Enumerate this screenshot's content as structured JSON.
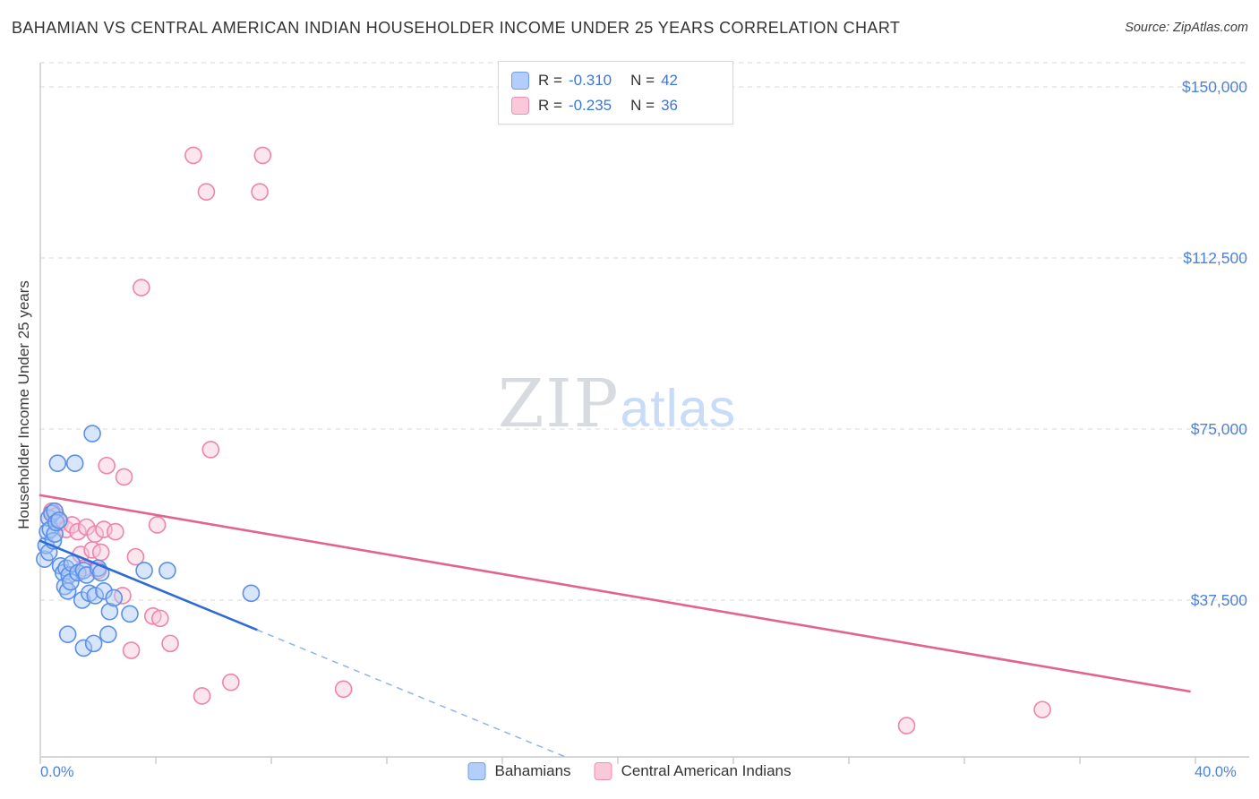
{
  "header": {
    "source": "Source: ZipAtlas.com"
  },
  "correlation_legend": {
    "r_label": "R =",
    "n_label": "N =",
    "rows": [
      {
        "series": "Bahamians",
        "r": "-0.310",
        "n": "42"
      },
      {
        "series": "Central American Indians",
        "r": "-0.235",
        "n": "36"
      }
    ]
  },
  "watermark": {
    "zip": "ZIP",
    "atlas": "atlas"
  },
  "chart_data": {
    "type": "scatter",
    "title": "BAHAMIAN VS CENTRAL AMERICAN INDIAN HOUSEHOLDER INCOME UNDER 25 YEARS CORRELATION CHART",
    "ylabel": "Householder Income Under 25 years",
    "x_axis": {
      "min": 0,
      "max": 40,
      "tick_count": 10,
      "left_label": "0.0%",
      "right_label": "40.0%"
    },
    "y_axis": {
      "min": 0,
      "max": 157000,
      "gridlines": [
        150000,
        112500,
        75000,
        37500
      ],
      "tick_labels": [
        "$150,000",
        "$112,500",
        "$75,000",
        "$37,500"
      ],
      "label_color": "#4d82d9"
    },
    "grid_color": "#d8d8d8",
    "axis_color": "#c9c9c9",
    "series": [
      {
        "name": "Central American Indians",
        "stroke": "#f083ab",
        "fill": "#f8c7d8",
        "trend_color": "#e2638f",
        "points": [
          [
            5.3,
            135000
          ],
          [
            7.7,
            135000
          ],
          [
            5.75,
            127000
          ],
          [
            7.6,
            127000
          ],
          [
            3.5,
            106000
          ],
          [
            2.3,
            67000
          ],
          [
            2.9,
            64500
          ],
          [
            5.9,
            70500
          ],
          [
            0.3,
            55500
          ],
          [
            0.4,
            57000
          ],
          [
            0.55,
            56000
          ],
          [
            0.7,
            54500
          ],
          [
            0.9,
            53000
          ],
          [
            1.1,
            54000
          ],
          [
            1.3,
            52500
          ],
          [
            1.6,
            53500
          ],
          [
            1.9,
            52000
          ],
          [
            2.2,
            53000
          ],
          [
            2.6,
            52500
          ],
          [
            1.4,
            47500
          ],
          [
            1.8,
            48500
          ],
          [
            2.1,
            48000
          ],
          [
            1.5,
            44500
          ],
          [
            2.0,
            44000
          ],
          [
            3.3,
            47000
          ],
          [
            4.05,
            54000
          ],
          [
            2.85,
            38500
          ],
          [
            3.9,
            34000
          ],
          [
            4.15,
            33500
          ],
          [
            3.15,
            26500
          ],
          [
            4.5,
            28000
          ],
          [
            5.6,
            16500
          ],
          [
            6.6,
            19500
          ],
          [
            10.5,
            18000
          ],
          [
            30.0,
            10000
          ],
          [
            34.7,
            13500
          ]
        ],
        "trend": {
          "solid": [
            [
              0,
              60500
            ],
            [
              39.8,
              17500
            ]
          ]
        }
      },
      {
        "name": "Bahamians",
        "stroke": "#5b8fe8",
        "fill": "#a9c8f7",
        "trend_color": "#2e6bd6",
        "trend_dash_color": "#8fb4ea",
        "points": [
          [
            0.15,
            46500
          ],
          [
            0.2,
            49500
          ],
          [
            0.25,
            52500
          ],
          [
            0.3,
            55500
          ],
          [
            0.3,
            48000
          ],
          [
            0.35,
            53000
          ],
          [
            0.4,
            56500
          ],
          [
            0.45,
            50500
          ],
          [
            0.5,
            57000
          ],
          [
            0.5,
            52000
          ],
          [
            0.55,
            54500
          ],
          [
            0.6,
            67500
          ],
          [
            0.65,
            55000
          ],
          [
            0.7,
            45000
          ],
          [
            0.8,
            43500
          ],
          [
            0.85,
            40500
          ],
          [
            0.9,
            44500
          ],
          [
            0.95,
            30000
          ],
          [
            0.95,
            39500
          ],
          [
            1.0,
            43000
          ],
          [
            1.05,
            41500
          ],
          [
            1.1,
            45500
          ],
          [
            1.2,
            67500
          ],
          [
            1.3,
            43500
          ],
          [
            1.45,
            37500
          ],
          [
            1.5,
            44000
          ],
          [
            1.5,
            27000
          ],
          [
            1.6,
            43000
          ],
          [
            1.7,
            39000
          ],
          [
            1.8,
            74000
          ],
          [
            1.85,
            28000
          ],
          [
            1.9,
            38500
          ],
          [
            2.0,
            44500
          ],
          [
            2.1,
            43500
          ],
          [
            2.2,
            39500
          ],
          [
            2.35,
            30000
          ],
          [
            2.4,
            35000
          ],
          [
            2.55,
            38000
          ],
          [
            3.1,
            34500
          ],
          [
            3.6,
            44000
          ],
          [
            4.4,
            44000
          ],
          [
            7.3,
            39000
          ]
        ],
        "trend": {
          "solid": [
            [
              0,
              50500
            ],
            [
              7.5,
              31000
            ]
          ],
          "dashed": [
            [
              7.5,
              31000
            ],
            [
              18.2,
              3100
            ]
          ]
        }
      }
    ]
  }
}
